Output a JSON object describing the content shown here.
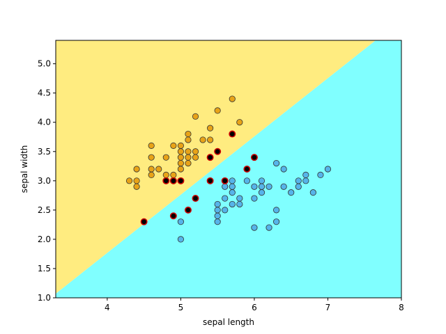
{
  "chart_data": {
    "type": "scatter",
    "title": "",
    "xlabel": "sepal length",
    "ylabel": "sepal width",
    "xlim": [
      3.3,
      8.0
    ],
    "ylim": [
      1.0,
      5.4
    ],
    "xticks": [
      4,
      5,
      6,
      7,
      8
    ],
    "yticks": [
      1.0,
      1.5,
      2.0,
      2.5,
      3.0,
      3.5,
      4.0,
      4.5,
      5.0
    ],
    "grid": false,
    "legend": "none",
    "decision_boundary": {
      "line": [
        [
          3.3,
          1.07
        ],
        [
          7.65,
          5.4
        ]
      ],
      "region_upper_color": "#ffec80",
      "region_lower_color": "#80ffff"
    },
    "series": [
      {
        "color": "#e8a317",
        "points": [
          [
            4.3,
            3.0
          ],
          [
            4.4,
            3.2
          ],
          [
            4.4,
            3.0
          ],
          [
            4.4,
            2.9
          ],
          [
            4.6,
            3.6
          ],
          [
            4.6,
            3.4
          ],
          [
            4.6,
            3.2
          ],
          [
            4.6,
            3.1
          ],
          [
            4.7,
            3.2
          ],
          [
            4.8,
            3.4
          ],
          [
            4.8,
            3.1
          ],
          [
            4.9,
            3.6
          ],
          [
            4.9,
            3.1
          ],
          [
            5.0,
            3.6
          ],
          [
            5.0,
            3.5
          ],
          [
            5.0,
            3.4
          ],
          [
            5.0,
            3.3
          ],
          [
            5.0,
            3.2
          ],
          [
            5.1,
            3.8
          ],
          [
            5.1,
            3.7
          ],
          [
            5.1,
            3.5
          ],
          [
            5.1,
            3.4
          ],
          [
            5.1,
            3.3
          ],
          [
            5.2,
            4.1
          ],
          [
            5.2,
            3.5
          ],
          [
            5.2,
            3.4
          ],
          [
            5.3,
            3.7
          ],
          [
            5.4,
            3.9
          ],
          [
            5.4,
            3.7
          ],
          [
            5.5,
            4.2
          ],
          [
            5.7,
            4.4
          ],
          [
            5.8,
            4.0
          ]
        ]
      },
      {
        "color": "#56b4e9",
        "points": [
          [
            5.0,
            2.3
          ],
          [
            5.0,
            2.0
          ],
          [
            5.5,
            2.6
          ],
          [
            5.5,
            2.5
          ],
          [
            5.5,
            2.4
          ],
          [
            5.5,
            2.3
          ],
          [
            5.6,
            2.9
          ],
          [
            5.6,
            2.7
          ],
          [
            5.6,
            2.5
          ],
          [
            5.7,
            3.0
          ],
          [
            5.7,
            2.9
          ],
          [
            5.7,
            2.8
          ],
          [
            5.7,
            2.6
          ],
          [
            5.8,
            2.7
          ],
          [
            5.8,
            2.6
          ],
          [
            5.9,
            3.0
          ],
          [
            6.0,
            2.9
          ],
          [
            6.0,
            2.7
          ],
          [
            6.0,
            2.2
          ],
          [
            6.1,
            3.0
          ],
          [
            6.1,
            2.9
          ],
          [
            6.1,
            2.8
          ],
          [
            6.2,
            2.9
          ],
          [
            6.2,
            2.2
          ],
          [
            6.3,
            3.3
          ],
          [
            6.3,
            2.5
          ],
          [
            6.3,
            2.3
          ],
          [
            6.4,
            3.2
          ],
          [
            6.4,
            2.9
          ],
          [
            6.5,
            2.8
          ],
          [
            6.6,
            3.0
          ],
          [
            6.6,
            2.9
          ],
          [
            6.7,
            3.1
          ],
          [
            6.7,
            3.0
          ],
          [
            6.8,
            2.8
          ],
          [
            6.9,
            3.1
          ],
          [
            7.0,
            3.2
          ]
        ]
      },
      {
        "color": "#000000",
        "edge_color": "#cc0000",
        "points": [
          [
            4.5,
            2.3
          ],
          [
            4.8,
            3.0
          ],
          [
            4.9,
            3.0
          ],
          [
            4.9,
            2.4
          ],
          [
            5.0,
            3.0
          ],
          [
            5.1,
            2.5
          ],
          [
            5.2,
            2.7
          ],
          [
            5.4,
            3.4
          ],
          [
            5.4,
            3.0
          ],
          [
            5.5,
            3.5
          ],
          [
            5.6,
            3.0
          ],
          [
            5.7,
            3.8
          ],
          [
            5.9,
            3.2
          ],
          [
            6.0,
            3.4
          ]
        ]
      }
    ]
  }
}
